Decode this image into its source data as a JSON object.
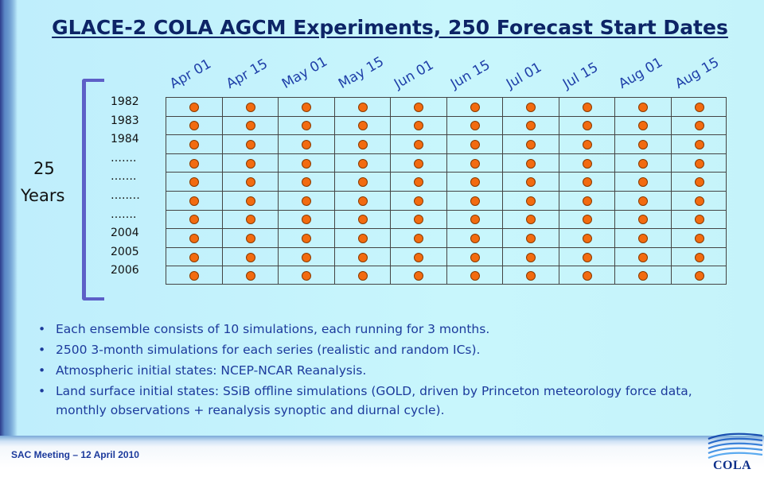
{
  "slide": {
    "title": "GLACE-2 COLA  AGCM Experiments, 250 Forecast Start Dates",
    "years_count": "25",
    "years_word": "Years",
    "start_dates": [
      "Apr 01",
      "Apr 15",
      "May 01",
      "May 15",
      "Jun 01",
      "Jun 15",
      "Jul 01",
      "Jul 15",
      "Aug 01",
      "Aug 15"
    ],
    "row_labels": [
      "1982",
      "1983",
      "1984",
      "…….",
      "…….",
      "…..…",
      "…….",
      "2004",
      "2005",
      "2006"
    ],
    "bullets": [
      "Each ensemble consists of 10 simulations, each running for 3 months.",
      "2500 3-month simulations for each series (realistic and random ICs).",
      "Atmospheric initial states: NCEP-NCAR Reanalysis.",
      "Land surface initial states: SSiB offline simulations (GOLD, driven by Princeton meteorology force data, monthly observations + reanalysis synoptic and diurnal cycle)."
    ],
    "footer": "SAC Meeting – 12 April 2010",
    "logo_text": "COLA",
    "colors": {
      "title": "#0d2466",
      "date_labels": "#1f3fa8",
      "bracket": "#5d5fc7",
      "dot_fill": "#f26b10",
      "bullet_text": "#1c3a9c"
    }
  }
}
